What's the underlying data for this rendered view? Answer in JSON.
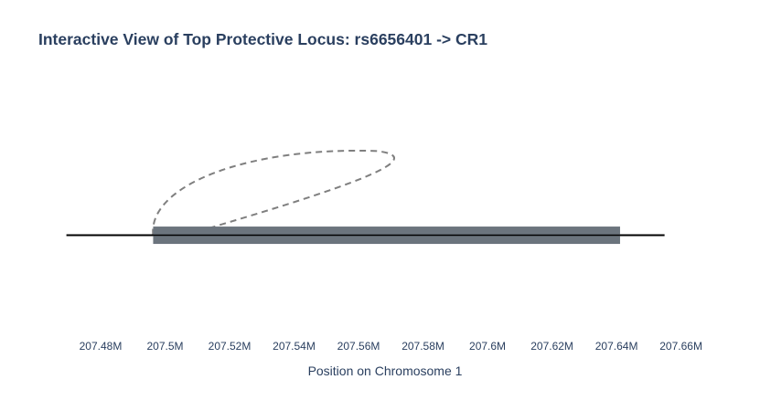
{
  "chart_data": {
    "type": "line",
    "title": "Interactive View of Top Protective Locus: rs6656401 -> CR1",
    "xlabel": "Position on Chromosome 1",
    "ylabel": "",
    "xlim": [
      207.4715,
      207.6655
    ],
    "ylim": [
      -1.5,
      2.6
    ],
    "x_ticks": [
      207.48,
      207.5,
      207.52,
      207.54,
      207.56,
      207.58,
      207.6,
      207.62,
      207.64,
      207.66
    ],
    "x_tick_labels": [
      "207.48M",
      "207.5M",
      "207.52M",
      "207.54M",
      "207.56M",
      "207.58M",
      "207.6M",
      "207.62M",
      "207.64M",
      "207.66M"
    ],
    "grid": false,
    "legend": "none",
    "chromosome_line": {
      "x": [
        207.4694,
        207.6549
      ],
      "y": [
        0,
        0
      ]
    },
    "gene": {
      "name": "CR1",
      "start": 207.4963,
      "end": 207.6411,
      "y": 0,
      "color": "#6b747d"
    },
    "snp": {
      "name": "rs6656401",
      "x": 207.4963,
      "y": 0
    },
    "link": {
      "from_x": 207.4963,
      "to_x": 207.5062,
      "y": 0,
      "peak_x": 207.5573,
      "peak_y": 1.35,
      "style": "dashed",
      "color": "#7f7f7f"
    },
    "colors": {
      "chromosome": "#000000",
      "text": "#2a3f5f"
    }
  }
}
